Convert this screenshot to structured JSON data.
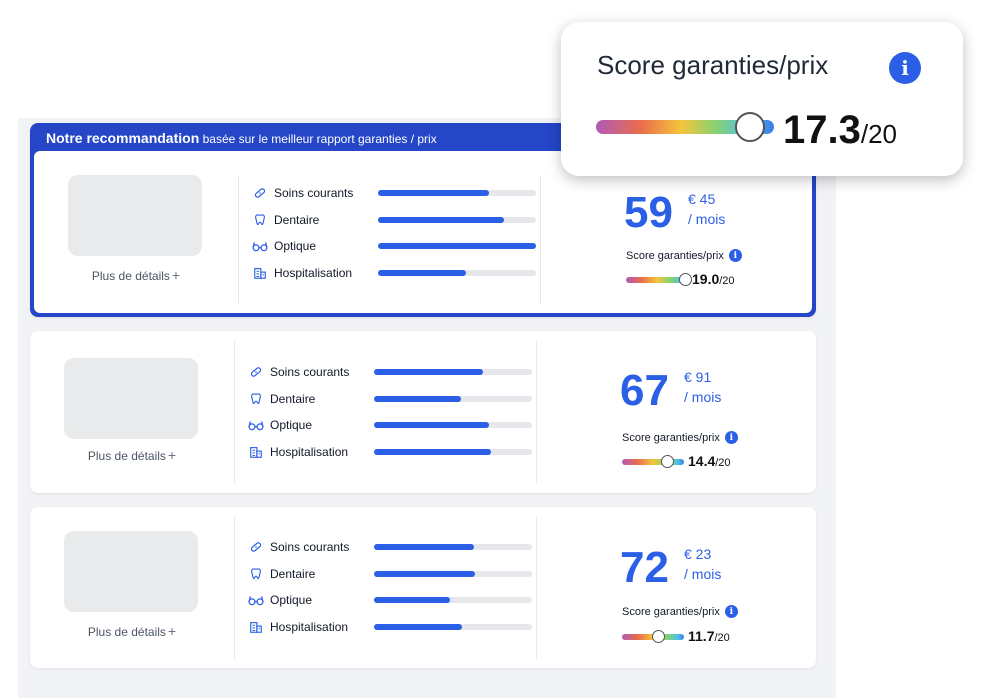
{
  "recommendation": {
    "title": "Notre recommandation",
    "subtitle": "basée sur le meilleur rapport garanties / prix"
  },
  "colors": {
    "accent": "#2b5fe6",
    "rec_border": "#2446c7",
    "bar_track": "#e5e7eb"
  },
  "tooltip": {
    "label": "Score garanties/prix",
    "info_icon": "info-icon",
    "score": "17.3",
    "denominator": "/20",
    "score_fraction": 0.865
  },
  "offers": [
    {
      "details_label": "Plus de détails",
      "plus": "+",
      "coverages": [
        {
          "label": "Soins courants",
          "icon": "bandage-icon",
          "level": 0.7
        },
        {
          "label": "Dentaire",
          "icon": "tooth-icon",
          "level": 0.8
        },
        {
          "label": "Optique",
          "icon": "glasses-icon",
          "level": 1.0
        },
        {
          "label": "Hospitalisation",
          "icon": "hospital-icon",
          "level": 0.56
        }
      ],
      "price_int": "59",
      "price_cents": "€ 45",
      "price_period": "/ mois",
      "score_label": "Score garanties/prix",
      "score": "19.0",
      "denominator": "/20",
      "score_fraction": 0.95
    },
    {
      "details_label": "Plus de détails",
      "plus": "+",
      "coverages": [
        {
          "label": "Soins courants",
          "icon": "bandage-icon",
          "level": 0.69
        },
        {
          "label": "Dentaire",
          "icon": "tooth-icon",
          "level": 0.55
        },
        {
          "label": "Optique",
          "icon": "glasses-icon",
          "level": 0.73
        },
        {
          "label": "Hospitalisation",
          "icon": "hospital-icon",
          "level": 0.74
        }
      ],
      "price_int": "67",
      "price_cents": "€ 91",
      "price_period": "/ mois",
      "score_label": "Score garanties/prix",
      "score": "14.4",
      "denominator": "/20",
      "score_fraction": 0.72
    },
    {
      "details_label": "Plus de détails",
      "plus": "+",
      "coverages": [
        {
          "label": "Soins courants",
          "icon": "bandage-icon",
          "level": 0.63
        },
        {
          "label": "Dentaire",
          "icon": "tooth-icon",
          "level": 0.64
        },
        {
          "label": "Optique",
          "icon": "glasses-icon",
          "level": 0.48
        },
        {
          "label": "Hospitalisation",
          "icon": "hospital-icon",
          "level": 0.56
        }
      ],
      "price_int": "72",
      "price_cents": "€ 23",
      "price_period": "/ mois",
      "score_label": "Score garanties/prix",
      "score": "11.7",
      "denominator": "/20",
      "score_fraction": 0.585
    }
  ]
}
